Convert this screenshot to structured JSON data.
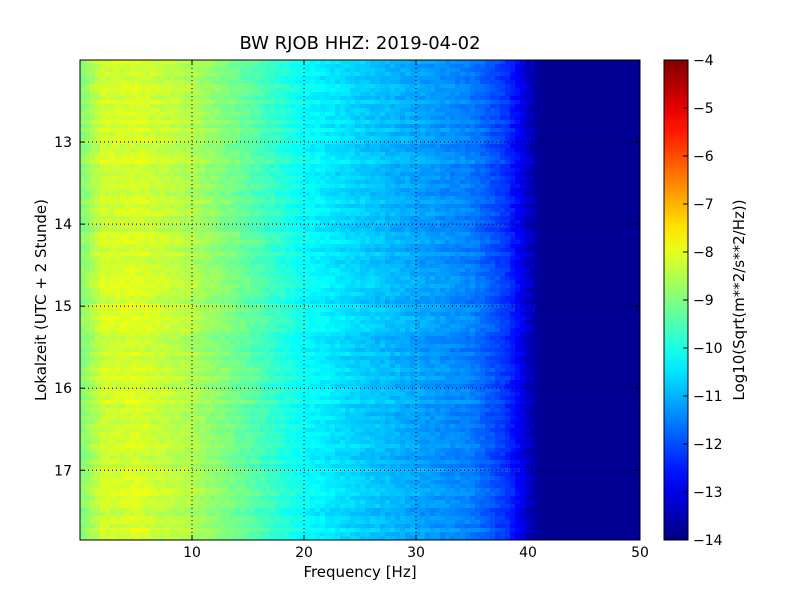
{
  "chart_data": {
    "type": "heatmap",
    "title": "BW RJOB HHZ: 2019-04-02",
    "xlabel": "Frequency [Hz]",
    "ylabel": "Lokalzeit (UTC + 2 Stunde)",
    "xlim": [
      0,
      50
    ],
    "ylim": [
      12.0,
      17.85
    ],
    "y_inverted": true,
    "x_ticks": [
      10,
      20,
      30,
      40,
      50
    ],
    "x_tick_labels": [
      "10",
      "20",
      "30",
      "40",
      "50"
    ],
    "y_ticks": [
      13,
      14,
      15,
      16,
      17
    ],
    "y_tick_labels": [
      "13",
      "14",
      "15",
      "16",
      "17"
    ],
    "grid": true,
    "colorscale": "jet",
    "colorbar": {
      "label": "Log10(Sqrt(m**2/s**2/Hz))",
      "range": [
        -14,
        -4
      ],
      "ticks": [
        -4,
        -5,
        -6,
        -7,
        -8,
        -9,
        -10,
        -11,
        -12,
        -13,
        -14
      ],
      "tick_labels": [
        "−4",
        "−5",
        "−6",
        "−7",
        "−8",
        "−9",
        "−10",
        "−11",
        "−12",
        "−13",
        "−14"
      ]
    },
    "spectrum_profile": {
      "frequency_hz": [
        0,
        2,
        5,
        10,
        15,
        20,
        25,
        30,
        35,
        38,
        40,
        41,
        50
      ],
      "log10_amplitude": [
        -9.0,
        -8.2,
        -8.1,
        -8.5,
        -9.3,
        -10.2,
        -10.7,
        -11.1,
        -11.5,
        -12.2,
        -13.2,
        -13.8,
        -13.8
      ]
    }
  }
}
